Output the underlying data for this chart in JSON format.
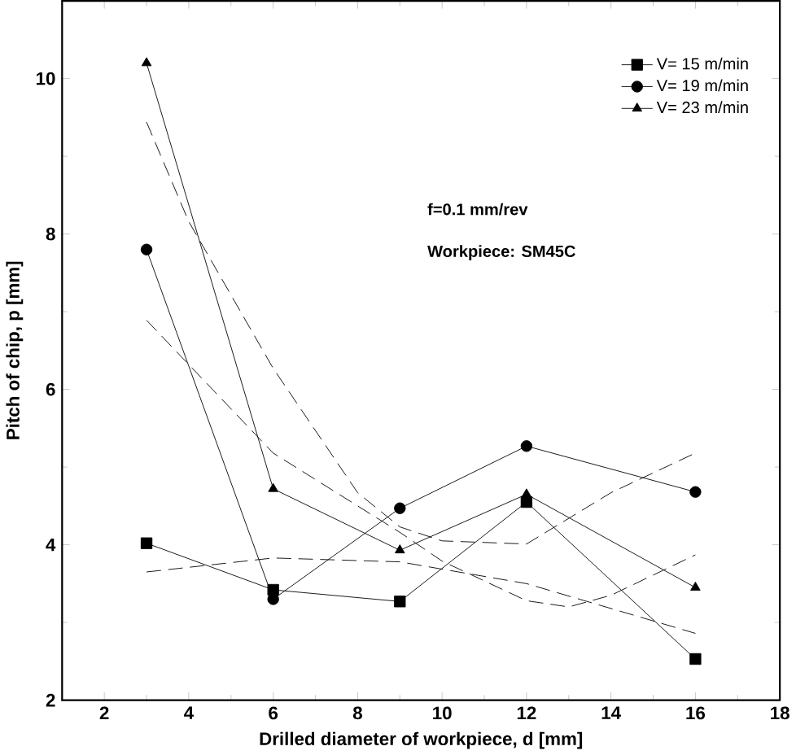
{
  "chart_data": {
    "type": "line",
    "xlabel": "Drilled diameter of workpiece, d [mm]",
    "ylabel": "Pitch of chip, p [mm]",
    "xlim": [
      1,
      18
    ],
    "ylim": [
      2,
      11
    ],
    "xticks": [
      2,
      4,
      6,
      8,
      10,
      12,
      14,
      16,
      18
    ],
    "yticks": [
      2,
      4,
      6,
      8,
      10
    ],
    "legend": "top right",
    "grid": false,
    "series": [
      {
        "name": "V= 15 m/min",
        "color": "#000000",
        "marker": "square",
        "line_style": "solid",
        "x": [
          3,
          6,
          9,
          12,
          16
        ],
        "values": [
          4.02,
          3.42,
          3.27,
          4.55,
          2.53
        ]
      },
      {
        "name": "V= 19 m/min",
        "color": "#000000",
        "marker": "circle",
        "line_style": "solid",
        "x": [
          3,
          6,
          9,
          12,
          16
        ],
        "values": [
          7.8,
          3.3,
          4.47,
          5.27,
          4.68
        ]
      },
      {
        "name": "V= 23 m/min",
        "color": "#000000",
        "marker": "triangle",
        "line_style": "solid",
        "x": [
          3,
          6,
          9,
          12,
          16
        ],
        "values": [
          10.2,
          4.72,
          3.93,
          4.65,
          3.45
        ]
      },
      {
        "color": "#000000",
        "marker": "none",
        "line_style": "dashed",
        "x": [
          3,
          6,
          9,
          12,
          16
        ],
        "values": [
          3.65,
          3.83,
          3.78,
          3.5,
          2.86
        ]
      },
      {
        "color": "#000000",
        "marker": "none",
        "line_style": "dashed",
        "x": [
          3,
          6,
          9,
          10,
          12,
          13,
          14,
          16
        ],
        "values": [
          6.89,
          5.18,
          4.16,
          3.79,
          3.28,
          3.2,
          3.35,
          3.87
        ]
      },
      {
        "color": "#000000",
        "marker": "none",
        "line_style": "dashed",
        "x": [
          3,
          4,
          6,
          8,
          9,
          10,
          12,
          14,
          16
        ],
        "values": [
          9.44,
          8.16,
          6.27,
          4.67,
          4.23,
          4.05,
          4.01,
          4.67,
          5.18
        ]
      }
    ],
    "annotations": [
      "f=0.1 mm/rev",
      "Workpiece: SM45C"
    ]
  }
}
